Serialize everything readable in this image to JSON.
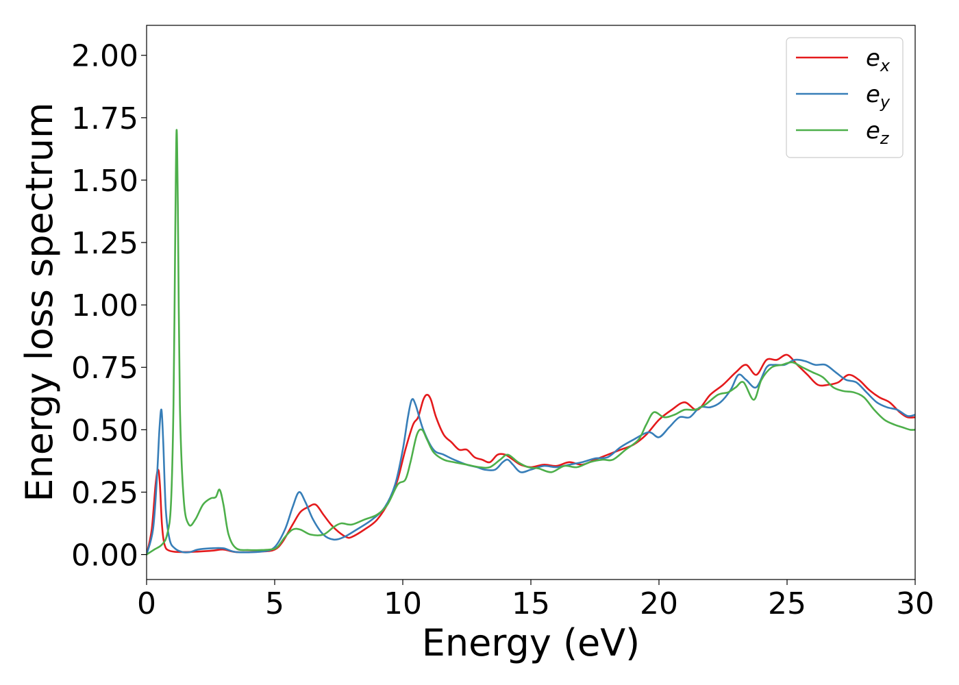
{
  "chart_data": {
    "type": "line",
    "title": "",
    "xlabel": "Energy (eV)",
    "ylabel": "Energy loss spectrum",
    "xlim": [
      0,
      30
    ],
    "ylim": [
      -0.1,
      2.12
    ],
    "xticks": [
      0,
      5,
      10,
      15,
      20,
      25,
      30
    ],
    "xtick_labels": [
      "0",
      "5",
      "10",
      "15",
      "20",
      "25",
      "30"
    ],
    "yticks": [
      0.0,
      0.25,
      0.5,
      0.75,
      1.0,
      1.25,
      1.5,
      1.75,
      2.0
    ],
    "ytick_labels": [
      "0.00",
      "0.25",
      "0.50",
      "0.75",
      "1.00",
      "1.25",
      "1.50",
      "1.75",
      "2.00"
    ],
    "grid": false,
    "legend": "top-right",
    "series": [
      {
        "name": "e",
        "subscript": "x",
        "color": "#e41a1c",
        "points": [
          [
            0,
            0
          ],
          [
            0.2,
            0.1
          ],
          [
            0.35,
            0.28
          ],
          [
            0.45,
            0.34
          ],
          [
            0.52,
            0.28
          ],
          [
            0.6,
            0.12
          ],
          [
            0.7,
            0.04
          ],
          [
            0.9,
            0.015
          ],
          [
            1.5,
            0.01
          ],
          [
            2.5,
            0.015
          ],
          [
            3,
            0.02
          ],
          [
            3.5,
            0.01
          ],
          [
            4.5,
            0.012
          ],
          [
            5,
            0.02
          ],
          [
            5.3,
            0.05
          ],
          [
            5.7,
            0.12
          ],
          [
            6.0,
            0.17
          ],
          [
            6.3,
            0.19
          ],
          [
            6.6,
            0.2
          ],
          [
            6.9,
            0.16
          ],
          [
            7.2,
            0.12
          ],
          [
            7.5,
            0.09
          ],
          [
            7.8,
            0.07
          ],
          [
            8.0,
            0.07
          ],
          [
            8.5,
            0.1
          ],
          [
            9.0,
            0.14
          ],
          [
            9.5,
            0.22
          ],
          [
            9.8,
            0.3
          ],
          [
            10.1,
            0.42
          ],
          [
            10.4,
            0.52
          ],
          [
            10.6,
            0.55
          ],
          [
            10.8,
            0.62
          ],
          [
            10.95,
            0.64
          ],
          [
            11.1,
            0.62
          ],
          [
            11.3,
            0.55
          ],
          [
            11.6,
            0.48
          ],
          [
            11.9,
            0.45
          ],
          [
            12.2,
            0.42
          ],
          [
            12.5,
            0.42
          ],
          [
            12.8,
            0.39
          ],
          [
            13.1,
            0.38
          ],
          [
            13.4,
            0.37
          ],
          [
            13.7,
            0.4
          ],
          [
            14.0,
            0.4
          ],
          [
            14.3,
            0.38
          ],
          [
            14.6,
            0.36
          ],
          [
            15.0,
            0.35
          ],
          [
            15.5,
            0.36
          ],
          [
            16.0,
            0.355
          ],
          [
            16.5,
            0.37
          ],
          [
            17.0,
            0.36
          ],
          [
            17.5,
            0.38
          ],
          [
            18.0,
            0.4
          ],
          [
            18.5,
            0.42
          ],
          [
            19.0,
            0.44
          ],
          [
            19.5,
            0.48
          ],
          [
            20.0,
            0.54
          ],
          [
            20.5,
            0.58
          ],
          [
            21.0,
            0.61
          ],
          [
            21.5,
            0.58
          ],
          [
            22.0,
            0.64
          ],
          [
            22.5,
            0.68
          ],
          [
            23.0,
            0.73
          ],
          [
            23.4,
            0.76
          ],
          [
            23.8,
            0.72
          ],
          [
            24.2,
            0.78
          ],
          [
            24.6,
            0.78
          ],
          [
            25.0,
            0.8
          ],
          [
            25.4,
            0.76
          ],
          [
            25.8,
            0.72
          ],
          [
            26.2,
            0.68
          ],
          [
            26.6,
            0.68
          ],
          [
            27.0,
            0.69
          ],
          [
            27.4,
            0.72
          ],
          [
            27.8,
            0.7
          ],
          [
            28.2,
            0.66
          ],
          [
            28.6,
            0.63
          ],
          [
            29.0,
            0.61
          ],
          [
            29.4,
            0.57
          ],
          [
            29.7,
            0.55
          ],
          [
            30,
            0.55
          ]
        ]
      },
      {
        "name": "e",
        "subscript": "y",
        "color": "#377eb8",
        "points": [
          [
            0,
            0
          ],
          [
            0.25,
            0.1
          ],
          [
            0.4,
            0.3
          ],
          [
            0.5,
            0.5
          ],
          [
            0.58,
            0.58
          ],
          [
            0.65,
            0.45
          ],
          [
            0.75,
            0.18
          ],
          [
            0.9,
            0.06
          ],
          [
            1.1,
            0.025
          ],
          [
            1.4,
            0.01
          ],
          [
            1.7,
            0.01
          ],
          [
            2.0,
            0.02
          ],
          [
            2.5,
            0.025
          ],
          [
            3,
            0.025
          ],
          [
            3.5,
            0.01
          ],
          [
            4.5,
            0.012
          ],
          [
            5,
            0.03
          ],
          [
            5.4,
            0.1
          ],
          [
            5.7,
            0.19
          ],
          [
            5.95,
            0.25
          ],
          [
            6.2,
            0.21
          ],
          [
            6.5,
            0.14
          ],
          [
            6.9,
            0.08
          ],
          [
            7.3,
            0.06
          ],
          [
            7.7,
            0.07
          ],
          [
            8.2,
            0.1
          ],
          [
            8.8,
            0.14
          ],
          [
            9.3,
            0.19
          ],
          [
            9.7,
            0.28
          ],
          [
            10.0,
            0.42
          ],
          [
            10.2,
            0.55
          ],
          [
            10.35,
            0.62
          ],
          [
            10.5,
            0.6
          ],
          [
            10.8,
            0.5
          ],
          [
            11.2,
            0.42
          ],
          [
            11.6,
            0.4
          ],
          [
            12.0,
            0.38
          ],
          [
            12.5,
            0.36
          ],
          [
            12.9,
            0.35
          ],
          [
            13.2,
            0.34
          ],
          [
            13.6,
            0.34
          ],
          [
            13.9,
            0.37
          ],
          [
            14.1,
            0.38
          ],
          [
            14.3,
            0.36
          ],
          [
            14.6,
            0.33
          ],
          [
            15.0,
            0.34
          ],
          [
            15.5,
            0.355
          ],
          [
            16.0,
            0.35
          ],
          [
            16.5,
            0.36
          ],
          [
            17.0,
            0.37
          ],
          [
            17.5,
            0.385
          ],
          [
            18.0,
            0.39
          ],
          [
            18.5,
            0.43
          ],
          [
            19.0,
            0.46
          ],
          [
            19.6,
            0.49
          ],
          [
            20.0,
            0.47
          ],
          [
            20.4,
            0.51
          ],
          [
            20.8,
            0.55
          ],
          [
            21.2,
            0.55
          ],
          [
            21.6,
            0.59
          ],
          [
            22.0,
            0.59
          ],
          [
            22.4,
            0.61
          ],
          [
            22.8,
            0.66
          ],
          [
            23.1,
            0.72
          ],
          [
            23.4,
            0.7
          ],
          [
            23.8,
            0.67
          ],
          [
            24.2,
            0.75
          ],
          [
            24.5,
            0.76
          ],
          [
            24.9,
            0.76
          ],
          [
            25.3,
            0.78
          ],
          [
            25.7,
            0.775
          ],
          [
            26.1,
            0.76
          ],
          [
            26.5,
            0.76
          ],
          [
            26.9,
            0.73
          ],
          [
            27.3,
            0.7
          ],
          [
            27.7,
            0.69
          ],
          [
            28.1,
            0.65
          ],
          [
            28.5,
            0.61
          ],
          [
            28.9,
            0.59
          ],
          [
            29.3,
            0.58
          ],
          [
            29.7,
            0.555
          ],
          [
            30,
            0.56
          ]
        ]
      },
      {
        "name": "e",
        "subscript": "z",
        "color": "#4daf4a",
        "points": [
          [
            0,
            0
          ],
          [
            0.3,
            0.02
          ],
          [
            0.6,
            0.04
          ],
          [
            0.8,
            0.08
          ],
          [
            0.95,
            0.2
          ],
          [
            1.05,
            0.6
          ],
          [
            1.12,
            1.3
          ],
          [
            1.17,
            1.7
          ],
          [
            1.22,
            1.4
          ],
          [
            1.3,
            0.6
          ],
          [
            1.45,
            0.22
          ],
          [
            1.65,
            0.12
          ],
          [
            1.9,
            0.14
          ],
          [
            2.2,
            0.2
          ],
          [
            2.5,
            0.225
          ],
          [
            2.7,
            0.23
          ],
          [
            2.85,
            0.26
          ],
          [
            3.0,
            0.2
          ],
          [
            3.2,
            0.08
          ],
          [
            3.5,
            0.025
          ],
          [
            4.0,
            0.018
          ],
          [
            4.8,
            0.02
          ],
          [
            5.1,
            0.03
          ],
          [
            5.4,
            0.07
          ],
          [
            5.7,
            0.1
          ],
          [
            6.0,
            0.1
          ],
          [
            6.4,
            0.08
          ],
          [
            6.9,
            0.08
          ],
          [
            7.3,
            0.11
          ],
          [
            7.6,
            0.125
          ],
          [
            8.0,
            0.12
          ],
          [
            8.5,
            0.14
          ],
          [
            9.0,
            0.16
          ],
          [
            9.4,
            0.2
          ],
          [
            9.8,
            0.28
          ],
          [
            10.1,
            0.3
          ],
          [
            10.3,
            0.37
          ],
          [
            10.55,
            0.48
          ],
          [
            10.75,
            0.5
          ],
          [
            10.95,
            0.46
          ],
          [
            11.2,
            0.41
          ],
          [
            11.6,
            0.38
          ],
          [
            12.0,
            0.37
          ],
          [
            12.5,
            0.36
          ],
          [
            13.0,
            0.35
          ],
          [
            13.4,
            0.35
          ],
          [
            13.8,
            0.38
          ],
          [
            14.1,
            0.4
          ],
          [
            14.5,
            0.37
          ],
          [
            14.9,
            0.35
          ],
          [
            15.3,
            0.345
          ],
          [
            15.8,
            0.33
          ],
          [
            16.3,
            0.355
          ],
          [
            16.8,
            0.35
          ],
          [
            17.3,
            0.37
          ],
          [
            17.8,
            0.38
          ],
          [
            18.2,
            0.38
          ],
          [
            18.7,
            0.42
          ],
          [
            19.2,
            0.46
          ],
          [
            19.5,
            0.52
          ],
          [
            19.8,
            0.57
          ],
          [
            20.2,
            0.55
          ],
          [
            20.6,
            0.56
          ],
          [
            21.0,
            0.58
          ],
          [
            21.4,
            0.58
          ],
          [
            21.8,
            0.6
          ],
          [
            22.3,
            0.64
          ],
          [
            22.7,
            0.65
          ],
          [
            23.0,
            0.67
          ],
          [
            23.3,
            0.69
          ],
          [
            23.7,
            0.62
          ],
          [
            24.0,
            0.7
          ],
          [
            24.4,
            0.75
          ],
          [
            24.8,
            0.76
          ],
          [
            25.2,
            0.77
          ],
          [
            25.6,
            0.75
          ],
          [
            26.0,
            0.73
          ],
          [
            26.4,
            0.71
          ],
          [
            26.8,
            0.67
          ],
          [
            27.2,
            0.655
          ],
          [
            27.6,
            0.65
          ],
          [
            28.0,
            0.63
          ],
          [
            28.4,
            0.58
          ],
          [
            28.8,
            0.54
          ],
          [
            29.2,
            0.52
          ],
          [
            29.5,
            0.51
          ],
          [
            29.8,
            0.5
          ],
          [
            30,
            0.5
          ]
        ]
      }
    ]
  }
}
